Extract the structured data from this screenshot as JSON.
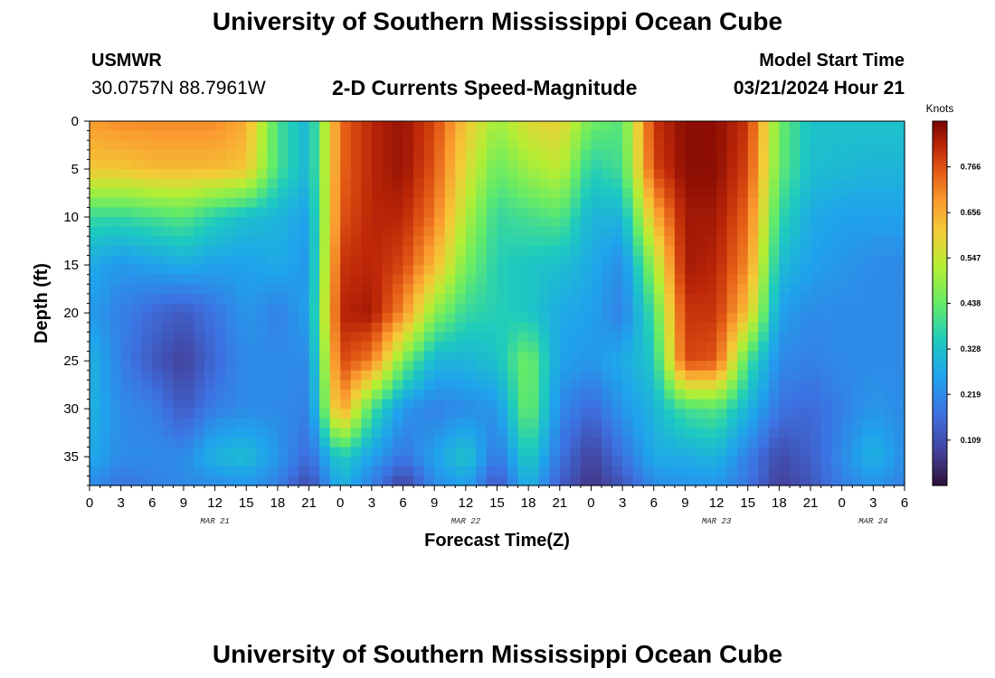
{
  "header": {
    "title": "University of Southern Mississippi Ocean Cube",
    "station_id": "USMWR",
    "station_coords": "30.0757N  88.7961W",
    "plot_title": "2-D Currents Speed-Magnitude",
    "model_label": "Model Start Time",
    "model_time": "03/21/2024 Hour 21"
  },
  "footer": {
    "title": "University of Southern Mississippi Ocean Cube"
  },
  "chart_data": {
    "type": "heatmap",
    "title": "2-D Currents Speed-Magnitude",
    "xlabel": "Forecast Time(Z)",
    "ylabel": "Depth (ft)",
    "x_unit": "hours from MAR 21 00Z",
    "xlim": [
      0,
      78
    ],
    "ylim": [
      0,
      38
    ],
    "y_inverted": true,
    "x_ticks": [
      0,
      3,
      6,
      9,
      12,
      15,
      18,
      21,
      24,
      27,
      30,
      33,
      36,
      39,
      42,
      45,
      48,
      51,
      54,
      57,
      60,
      63,
      66,
      69,
      72,
      75,
      78
    ],
    "x_tick_labels": [
      "0",
      "3",
      "6",
      "9",
      "12",
      "15",
      "18",
      "21",
      "0",
      "3",
      "6",
      "9",
      "12",
      "15",
      "18",
      "21",
      "0",
      "3",
      "6",
      "9",
      "12",
      "15",
      "18",
      "21",
      "0",
      "3",
      "6"
    ],
    "y_ticks": [
      0,
      5,
      10,
      15,
      20,
      25,
      30,
      35
    ],
    "y_tick_labels": [
      "0",
      "5",
      "10",
      "15",
      "20",
      "25",
      "30",
      "35"
    ],
    "date_labels": [
      {
        "x": 12,
        "label": "MAR 21"
      },
      {
        "x": 36,
        "label": "MAR 22"
      },
      {
        "x": 60,
        "label": "MAR 23"
      },
      {
        "x": 75,
        "label": "MAR 24"
      }
    ],
    "colorbar": {
      "title": "Knots",
      "range": [
        0,
        0.876
      ],
      "ticks": [
        0.109,
        0.219,
        0.328,
        0.438,
        0.547,
        0.656,
        0.766
      ],
      "tick_labels": [
        "0.109",
        "0.219",
        "0.328",
        "0.438",
        "0.547",
        "0.656",
        "0.766"
      ],
      "colormap": "turbo"
    },
    "depths": [
      0,
      5,
      10,
      15,
      20,
      25,
      30,
      35,
      38
    ],
    "times": [
      0,
      3,
      6,
      9,
      12,
      15,
      18,
      21,
      24,
      27,
      30,
      33,
      36,
      39,
      42,
      45,
      48,
      51,
      54,
      57,
      60,
      63,
      66,
      69,
      72,
      75,
      78
    ],
    "values": [
      [
        0.68,
        0.7,
        0.7,
        0.7,
        0.7,
        0.66,
        0.4,
        0.3,
        0.74,
        0.82,
        0.85,
        0.78,
        0.62,
        0.5,
        0.58,
        0.6,
        0.45,
        0.42,
        0.8,
        0.86,
        0.86,
        0.8,
        0.45,
        0.33,
        0.33,
        0.33,
        0.33
      ],
      [
        0.62,
        0.62,
        0.64,
        0.64,
        0.64,
        0.62,
        0.4,
        0.3,
        0.74,
        0.82,
        0.85,
        0.76,
        0.58,
        0.44,
        0.5,
        0.54,
        0.36,
        0.4,
        0.78,
        0.86,
        0.86,
        0.78,
        0.44,
        0.32,
        0.31,
        0.3,
        0.3
      ],
      [
        0.38,
        0.38,
        0.4,
        0.42,
        0.36,
        0.32,
        0.3,
        0.26,
        0.76,
        0.82,
        0.82,
        0.72,
        0.52,
        0.38,
        0.4,
        0.42,
        0.3,
        0.3,
        0.64,
        0.84,
        0.84,
        0.74,
        0.38,
        0.28,
        0.26,
        0.26,
        0.26
      ],
      [
        0.28,
        0.24,
        0.26,
        0.28,
        0.26,
        0.26,
        0.28,
        0.24,
        0.8,
        0.82,
        0.78,
        0.64,
        0.46,
        0.36,
        0.34,
        0.32,
        0.28,
        0.22,
        0.5,
        0.84,
        0.82,
        0.7,
        0.32,
        0.26,
        0.24,
        0.22,
        0.22
      ],
      [
        0.25,
        0.2,
        0.16,
        0.13,
        0.18,
        0.24,
        0.2,
        0.26,
        0.82,
        0.84,
        0.7,
        0.48,
        0.38,
        0.36,
        0.34,
        0.28,
        0.26,
        0.2,
        0.4,
        0.8,
        0.8,
        0.62,
        0.26,
        0.22,
        0.22,
        0.22,
        0.22
      ],
      [
        0.3,
        0.2,
        0.13,
        0.08,
        0.16,
        0.22,
        0.22,
        0.22,
        0.78,
        0.72,
        0.46,
        0.3,
        0.3,
        0.33,
        0.46,
        0.26,
        0.24,
        0.28,
        0.34,
        0.78,
        0.76,
        0.4,
        0.22,
        0.2,
        0.22,
        0.22,
        0.22
      ],
      [
        0.3,
        0.22,
        0.2,
        0.13,
        0.2,
        0.22,
        0.22,
        0.2,
        0.7,
        0.4,
        0.24,
        0.2,
        0.22,
        0.24,
        0.46,
        0.22,
        0.16,
        0.24,
        0.3,
        0.4,
        0.42,
        0.3,
        0.18,
        0.16,
        0.2,
        0.24,
        0.22
      ],
      [
        0.28,
        0.22,
        0.22,
        0.22,
        0.3,
        0.32,
        0.24,
        0.16,
        0.36,
        0.26,
        0.18,
        0.26,
        0.34,
        0.18,
        0.36,
        0.18,
        0.08,
        0.18,
        0.28,
        0.28,
        0.3,
        0.2,
        0.1,
        0.14,
        0.22,
        0.3,
        0.22
      ],
      [
        0.22,
        0.18,
        0.2,
        0.22,
        0.22,
        0.24,
        0.2,
        0.1,
        0.3,
        0.2,
        0.08,
        0.22,
        0.26,
        0.12,
        0.3,
        0.14,
        0.06,
        0.12,
        0.22,
        0.24,
        0.24,
        0.18,
        0.08,
        0.12,
        0.2,
        0.24,
        0.2
      ]
    ]
  }
}
